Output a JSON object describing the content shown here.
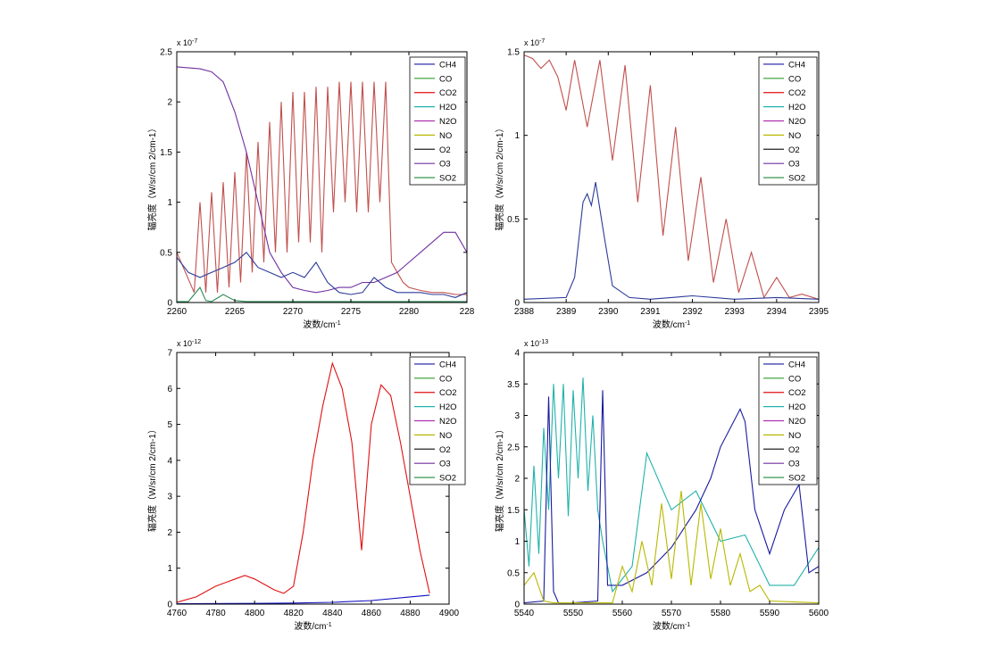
{
  "chart_data": [
    {
      "type": "line",
      "ylabel": "辐亮度（W/sr/cm 2/cm-1）",
      "xlabel": "波数/cm-1",
      "exponent_label": "x 10-7",
      "xlim": [
        2260,
        2285
      ],
      "ylim": [
        0,
        2.5
      ],
      "xticks": [
        "2260",
        "2265",
        "2270",
        "2275",
        "2280",
        "228"
      ],
      "yticks": [
        "0",
        "0.5",
        "1",
        "1.5",
        "2",
        "2.5"
      ],
      "legend": [
        "CH4",
        "CO",
        "CO2",
        "H2O",
        "N2O",
        "NO",
        "O2",
        "O3",
        "SO2"
      ],
      "legend_position": "top-right",
      "series": [
        {
          "name": "CO2",
          "color": "#c0504d",
          "x": [
            2260,
            2261.5,
            2262,
            2262.5,
            2263,
            2263.5,
            2264,
            2264.5,
            2265,
            2265.5,
            2266,
            2266.5,
            2267,
            2267.5,
            2268,
            2268.5,
            2269,
            2269.5,
            2270,
            2270.5,
            2271,
            2271.5,
            2272,
            2272.5,
            2273,
            2273.5,
            2274,
            2274.5,
            2275,
            2275.5,
            2276,
            2276.5,
            2277,
            2277.5,
            2278,
            2278.5,
            2279,
            2279.5,
            2280,
            2281,
            2282,
            2283,
            2284,
            2285
          ],
          "y": [
            0.5,
            0.1,
            1.0,
            0.1,
            1.1,
            0.1,
            1.2,
            0.15,
            1.3,
            0.2,
            1.5,
            0.3,
            1.6,
            0.4,
            1.8,
            0.5,
            2.0,
            0.5,
            2.1,
            0.6,
            2.1,
            0.6,
            2.15,
            0.5,
            2.15,
            0.9,
            2.2,
            1.0,
            2.2,
            0.9,
            2.2,
            0.9,
            2.2,
            1.0,
            2.2,
            0.4,
            0.3,
            0.2,
            0.15,
            0.12,
            0.1,
            0.1,
            0.08,
            0.08
          ]
        },
        {
          "name": "O3",
          "color": "#7030a0",
          "x": [
            2260,
            2262,
            2263,
            2264,
            2265,
            2266,
            2267,
            2268,
            2269,
            2270,
            2271,
            2272,
            2273,
            2274,
            2275,
            2276,
            2277,
            2278,
            2279,
            2280,
            2281,
            2282,
            2283,
            2284,
            2285
          ],
          "y": [
            2.35,
            2.33,
            2.3,
            2.2,
            1.9,
            1.5,
            1.0,
            0.5,
            0.3,
            0.15,
            0.12,
            0.1,
            0.12,
            0.15,
            0.15,
            0.2,
            0.2,
            0.25,
            0.3,
            0.4,
            0.5,
            0.6,
            0.7,
            0.7,
            0.5
          ]
        },
        {
          "name": "CH4",
          "color": "#2b3a99",
          "x": [
            2260,
            2261,
            2262,
            2263,
            2264,
            2265,
            2266,
            2267,
            2268,
            2269,
            2270,
            2271,
            2272,
            2273,
            2274,
            2275,
            2276,
            2277,
            2278,
            2279,
            2280,
            2281,
            2282,
            2283,
            2284,
            2285
          ],
          "y": [
            0.45,
            0.3,
            0.25,
            0.3,
            0.35,
            0.4,
            0.5,
            0.35,
            0.3,
            0.25,
            0.3,
            0.25,
            0.4,
            0.2,
            0.1,
            0.08,
            0.1,
            0.25,
            0.15,
            0.1,
            0.1,
            0.1,
            0.08,
            0.08,
            0.05,
            0.1
          ]
        },
        {
          "name": "SO2",
          "color": "#2e8b57",
          "x": [
            2260,
            2261,
            2262,
            2262.5,
            2263,
            2264,
            2265,
            2266,
            2270,
            2275,
            2280,
            2285
          ],
          "y": [
            0.01,
            0.01,
            0.15,
            0.02,
            0.01,
            0.08,
            0.02,
            0.01,
            0.01,
            0.01,
            0.01,
            0.01
          ]
        }
      ]
    },
    {
      "type": "line",
      "ylabel": "辐亮度（W/sr/cm 2/cm-1）",
      "xlabel": "波数/cm-1",
      "exponent_label": "x 10-7",
      "xlim": [
        2388,
        2395
      ],
      "ylim": [
        0,
        1.5
      ],
      "xticks": [
        "2388",
        "2389",
        "2390",
        "2391",
        "2392",
        "2393",
        "2394",
        "2395"
      ],
      "yticks": [
        "0",
        "0.5",
        "1",
        "1.5"
      ],
      "legend": [
        "CH4",
        "CO",
        "CO2",
        "H2O",
        "N2O",
        "NO",
        "O2",
        "O3",
        "SO2"
      ],
      "legend_position": "top-right",
      "series": [
        {
          "name": "CO2",
          "color": "#c0504d",
          "x": [
            2388,
            2388.2,
            2388.4,
            2388.6,
            2388.8,
            2389,
            2389.2,
            2389.5,
            2389.8,
            2390.1,
            2390.4,
            2390.7,
            2391.0,
            2391.3,
            2391.6,
            2391.9,
            2392.2,
            2392.5,
            2392.8,
            2393.1,
            2393.4,
            2393.7,
            2394,
            2394.3,
            2394.6,
            2395
          ],
          "y": [
            1.48,
            1.46,
            1.4,
            1.45,
            1.35,
            1.15,
            1.45,
            1.05,
            1.45,
            0.85,
            1.42,
            0.6,
            1.3,
            0.4,
            1.05,
            0.25,
            0.75,
            0.12,
            0.5,
            0.06,
            0.3,
            0.03,
            0.15,
            0.03,
            0.05,
            0.02
          ]
        },
        {
          "name": "CH4",
          "color": "#2b3a99",
          "x": [
            2388,
            2389,
            2389.2,
            2389.4,
            2389.5,
            2389.6,
            2389.7,
            2389.9,
            2390.1,
            2390.5,
            2391,
            2392,
            2393,
            2394,
            2395
          ],
          "y": [
            0.02,
            0.03,
            0.15,
            0.6,
            0.65,
            0.58,
            0.72,
            0.4,
            0.1,
            0.03,
            0.02,
            0.04,
            0.02,
            0.03,
            0.02
          ]
        }
      ]
    },
    {
      "type": "line",
      "ylabel": "辐亮度（W/sr/cm 2/cm-1）",
      "xlabel": "波数/cm-1",
      "exponent_label": "x 10-12",
      "xlim": [
        4760,
        4900
      ],
      "ylim": [
        0,
        7
      ],
      "xticks": [
        "4760",
        "4780",
        "4800",
        "4820",
        "4840",
        "4860",
        "4880",
        "4900"
      ],
      "yticks": [
        "0",
        "1",
        "2",
        "3",
        "4",
        "5",
        "6",
        "7"
      ],
      "legend": [
        "CH4",
        "CO",
        "CO2",
        "H2O",
        "N2O",
        "NO",
        "O2",
        "O3",
        "SO2"
      ],
      "legend_position": "top-right",
      "series": [
        {
          "name": "CO2",
          "color": "#e01010",
          "x": [
            4760,
            4770,
            4780,
            4790,
            4795,
            4800,
            4810,
            4815,
            4820,
            4825,
            4830,
            4835,
            4840,
            4845,
            4850,
            4855,
            4860,
            4865,
            4870,
            4875,
            4880,
            4885,
            4890
          ],
          "y": [
            0.05,
            0.2,
            0.5,
            0.7,
            0.8,
            0.7,
            0.4,
            0.3,
            0.5,
            2.0,
            4.0,
            5.5,
            6.7,
            6.0,
            4.5,
            1.5,
            5.0,
            6.1,
            5.8,
            4.5,
            3.0,
            1.5,
            0.3
          ]
        },
        {
          "name": "CH4",
          "color": "#1010c0",
          "x": [
            4760,
            4800,
            4820,
            4840,
            4860,
            4880,
            4890
          ],
          "y": [
            0.01,
            0.02,
            0.03,
            0.05,
            0.1,
            0.2,
            0.25
          ]
        }
      ]
    },
    {
      "type": "line",
      "ylabel": "辐亮度（W/sr/cm 2/cm-1）",
      "xlabel": "波数/cm-1",
      "exponent_label": "x 10-13",
      "xlim": [
        5540,
        5600
      ],
      "ylim": [
        0,
        4
      ],
      "xticks": [
        "5540",
        "5550",
        "5560",
        "5570",
        "5580",
        "5590",
        "5600"
      ],
      "yticks": [
        "0",
        "0.5",
        "1",
        "1.5",
        "2",
        "2.5",
        "3",
        "3.5",
        "4"
      ],
      "legend": [
        "CH4",
        "CO",
        "CO2",
        "H2O",
        "N2O",
        "NO",
        "O2",
        "O3",
        "SO2"
      ],
      "legend_position": "top-right",
      "series": [
        {
          "name": "H2O",
          "color": "#20b2aa",
          "x": [
            5540,
            5541,
            5542,
            5543,
            5544,
            5545,
            5546,
            5547,
            5548,
            5549,
            5550,
            5551,
            5552,
            5553,
            5554,
            5555,
            5556,
            5558,
            5562,
            5565,
            5570,
            5575,
            5580,
            5585,
            5590,
            5595,
            5600
          ],
          "y": [
            1.5,
            0.6,
            2.2,
            0.8,
            2.8,
            1.5,
            3.5,
            2.0,
            3.5,
            1.4,
            3.4,
            2.0,
            3.6,
            1.8,
            3.0,
            1.5,
            1.0,
            0.2,
            0.6,
            2.4,
            1.5,
            1.8,
            1.0,
            1.1,
            0.3,
            0.3,
            0.9
          ]
        },
        {
          "name": "CH4",
          "color": "#1a1aa0",
          "x": [
            5540,
            5544,
            5545,
            5546,
            5547,
            5548,
            5550,
            5555,
            5556,
            5557,
            5560,
            5565,
            5570,
            5575,
            5578,
            5580,
            5582,
            5584,
            5585,
            5587,
            5590,
            5593,
            5596,
            5598,
            5600
          ],
          "y": [
            0.02,
            0.05,
            3.3,
            0.2,
            0.02,
            0.02,
            0.02,
            0.05,
            3.4,
            0.3,
            0.3,
            0.5,
            0.9,
            1.5,
            2.0,
            2.5,
            2.8,
            3.1,
            2.9,
            1.5,
            0.8,
            1.5,
            1.9,
            0.5,
            0.6
          ]
        },
        {
          "name": "NO",
          "color": "#b8b800",
          "x": [
            5540,
            5542,
            5544,
            5546,
            5550,
            5558,
            5560,
            5562,
            5564,
            5566,
            5568,
            5570,
            5572,
            5574,
            5576,
            5578,
            5580,
            5582,
            5584,
            5586,
            5588,
            5590,
            5600
          ],
          "y": [
            0.3,
            0.5,
            0.05,
            0.02,
            0.02,
            0.02,
            0.6,
            0.2,
            1.0,
            0.3,
            1.6,
            0.4,
            1.8,
            0.3,
            1.6,
            0.4,
            1.2,
            0.3,
            0.8,
            0.2,
            0.3,
            0.05,
            0.02
          ]
        }
      ]
    }
  ]
}
